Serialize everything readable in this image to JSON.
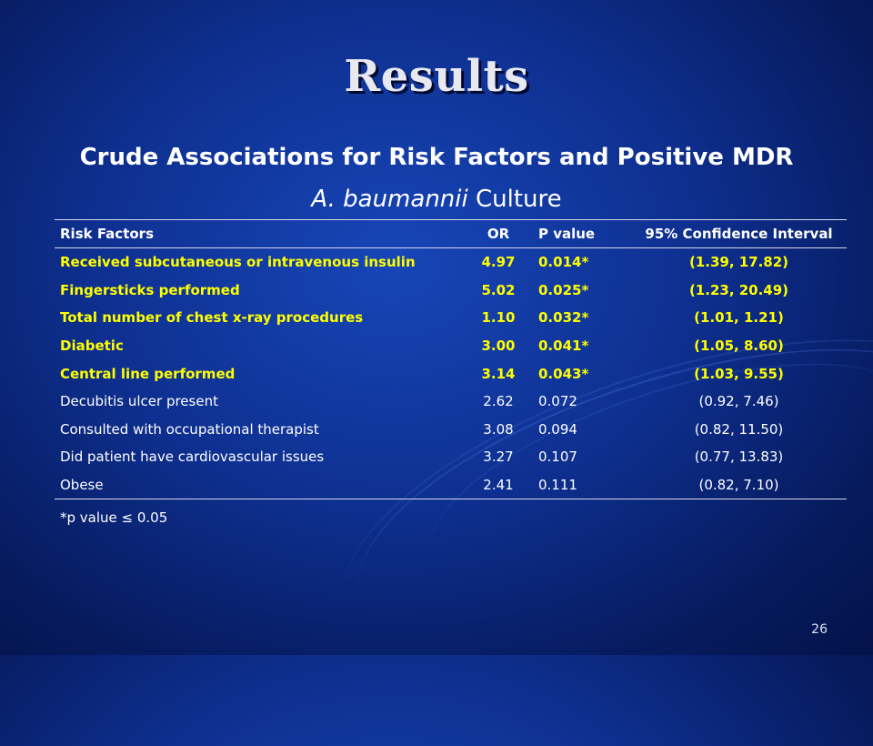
{
  "slide": {
    "title": "Results",
    "subtitle_line1": "Crude Associations for Risk Factors and Positive MDR",
    "subtitle_line2_italic": "A. baumannii",
    "subtitle_line2_rest": " Culture",
    "footnote": "*p value ≤ 0.05",
    "page_number": "26"
  },
  "table": {
    "headers": [
      "Risk Factors",
      "OR",
      "P value",
      "95% Confidence Interval"
    ],
    "rows": [
      [
        "Received subcutaneous or intravenous insulin",
        "4.97",
        "0.014*",
        "(1.39, 17.82)"
      ],
      [
        "Fingersticks performed",
        "5.02",
        "0.025*",
        "(1.23, 20.49)"
      ],
      [
        "Total number of chest x-ray procedures",
        "1.10",
        "0.032*",
        "(1.01, 1.21)"
      ],
      [
        "Diabetic",
        "3.00",
        "0.041*",
        "(1.05, 8.60)"
      ],
      [
        "Central line performed",
        "3.14",
        "0.043*",
        "(1.03, 9.55)"
      ],
      [
        "Decubitis ulcer present",
        "2.62",
        "0.072",
        "(0.92, 7.46)"
      ],
      [
        "Consulted with occupational therapist",
        "3.08",
        "0.094",
        "(0.82, 11.50)"
      ],
      [
        "Did patient have cardiovascular issues",
        "3.27",
        "0.107",
        "(0.77, 13.83)"
      ],
      [
        "Obese",
        "2.41",
        "0.111",
        "(0.82, 7.10)"
      ]
    ]
  },
  "colors": {
    "significant_text": "#ffff00",
    "normal_text": "#ffffff",
    "background": "#0e2f8f"
  }
}
